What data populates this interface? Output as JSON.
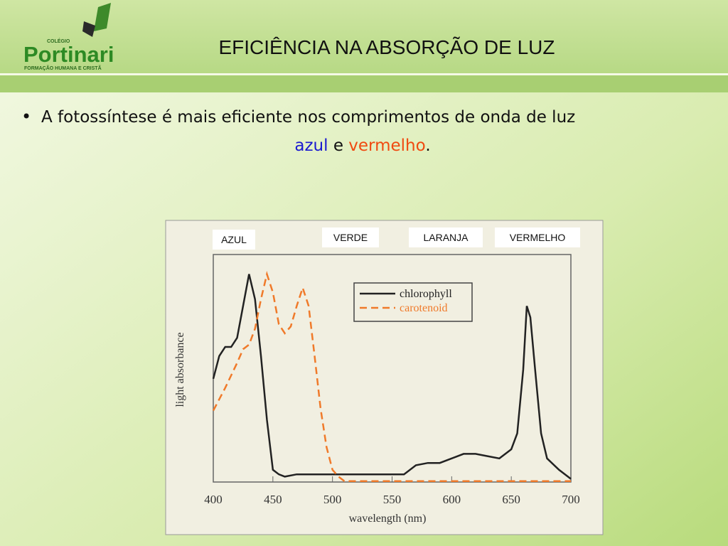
{
  "logo": {
    "top": "COLÉGIO",
    "name": "Portinari",
    "tagline": "FORMAÇÃO HUMANA E CRISTÃ"
  },
  "header": {
    "title": "EFICIÊNCIA NA ABSORÇÃO DE LUZ"
  },
  "bullet": {
    "text": "A fotossíntese é mais eficiente nos comprimentos de onda  de luz",
    "blue": "azul",
    "joiner": "e",
    "red": "vermelho",
    "end": "."
  },
  "chart_data": {
    "type": "line",
    "x_label": "wavelength (nm)",
    "y_label": "light absorbance",
    "annotations": [
      "AZUL",
      "VERDE",
      "LARANJA",
      "VERMELHO"
    ],
    "xlim": [
      400,
      700
    ],
    "xticks": [
      400,
      450,
      500,
      550,
      600,
      650,
      700
    ],
    "ylim": [
      0,
      1
    ],
    "legend": "top-right",
    "series": [
      {
        "name": "chlorophyll",
        "color": "#222222",
        "dash": false,
        "x": [
          400,
          405,
          410,
          415,
          420,
          425,
          430,
          435,
          440,
          445,
          450,
          455,
          460,
          470,
          480,
          500,
          520,
          540,
          560,
          570,
          580,
          590,
          600,
          610,
          620,
          630,
          640,
          650,
          655,
          660,
          663,
          666,
          670,
          675,
          680,
          690,
          700
        ],
        "values": [
          0.46,
          0.56,
          0.6,
          0.6,
          0.64,
          0.78,
          0.92,
          0.81,
          0.56,
          0.28,
          0.06,
          0.04,
          0.03,
          0.04,
          0.04,
          0.04,
          0.04,
          0.04,
          0.04,
          0.08,
          0.09,
          0.09,
          0.11,
          0.13,
          0.13,
          0.12,
          0.11,
          0.15,
          0.22,
          0.5,
          0.78,
          0.73,
          0.5,
          0.22,
          0.11,
          0.06,
          0.02
        ]
      },
      {
        "name": "carotenoid",
        "color": "#f07a2a",
        "dash": true,
        "x": [
          400,
          410,
          420,
          425,
          430,
          435,
          440,
          445,
          450,
          455,
          460,
          465,
          470,
          475,
          480,
          485,
          490,
          495,
          500,
          505,
          510,
          550,
          600,
          700
        ],
        "values": [
          0.32,
          0.42,
          0.53,
          0.59,
          0.61,
          0.68,
          0.81,
          0.92,
          0.84,
          0.7,
          0.66,
          0.69,
          0.78,
          0.86,
          0.78,
          0.56,
          0.33,
          0.16,
          0.06,
          0.03,
          0.01,
          0.01,
          0.01,
          0.01
        ]
      }
    ]
  }
}
